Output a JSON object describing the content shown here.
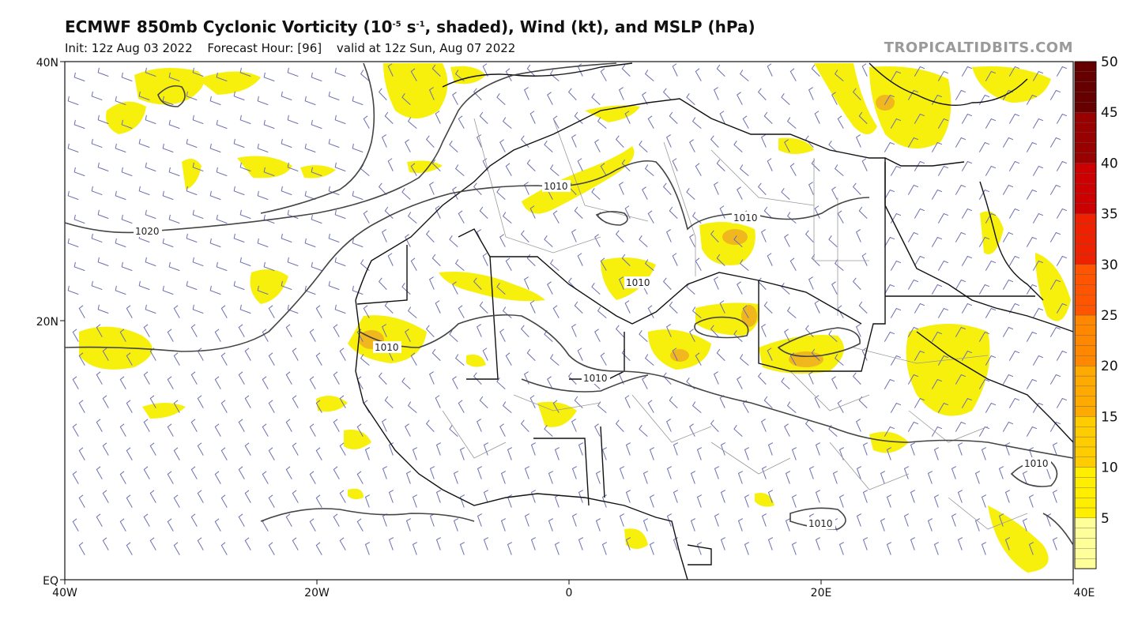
{
  "header": {
    "title_main": "ECMWF 850mb Cyclonic Vorticity (10",
    "title_exp1": "-5",
    "title_mid": " s",
    "title_exp2": "-1",
    "title_end": ", shaded), Wind (kt), and MSLP (hPa)",
    "init": "Init: 12z Aug 03 2022",
    "forecast_hour": "Forecast Hour: [96]",
    "valid": "valid at 12z Sun, Aug 07 2022",
    "brand": "TROPICALTIDBITS.COM"
  },
  "axes": {
    "lon_ticks": [
      "40W",
      "20W",
      "0",
      "20E",
      "40E"
    ],
    "lat_ticks": [
      "40N",
      "20N",
      "EQ"
    ]
  },
  "colorbar": {
    "levels": [
      "5",
      "10",
      "15",
      "20",
      "25",
      "30",
      "35",
      "40",
      "45",
      "50"
    ],
    "colors": [
      "#ffff99",
      "#ffee00",
      "#ffcc00",
      "#ffaa00",
      "#ff8800",
      "#ff5500",
      "#ee2200",
      "#cc0000",
      "#990000",
      "#660000"
    ]
  },
  "isobars": [
    "1020",
    "1010",
    "1010",
    "1010",
    "1010",
    "1010",
    "1010",
    "1010"
  ],
  "colors": {
    "land_outline": "#111111",
    "isobar": "#444444",
    "barb": "#6b6fb0",
    "shade_light": "#f7ef00",
    "shade_orange": "#f0b020"
  }
}
